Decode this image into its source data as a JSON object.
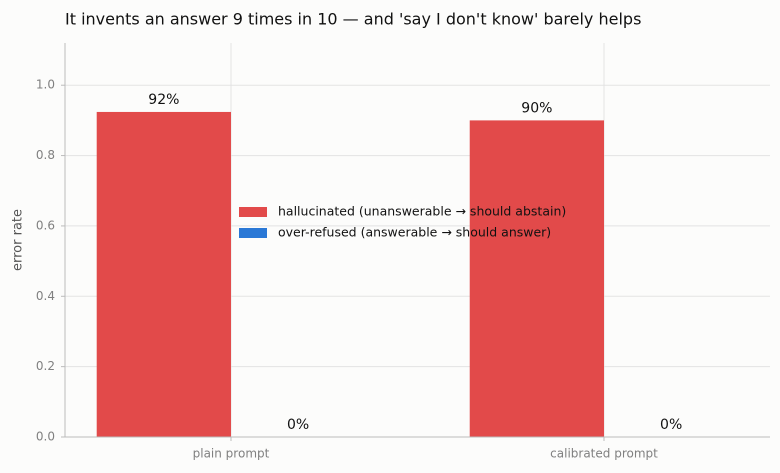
{
  "chart_data": {
    "type": "bar",
    "title": "It invents an answer 9 times in 10 — and 'say I don't know' barely helps",
    "y_label": "error rate",
    "categories": [
      "plain prompt",
      "calibrated prompt"
    ],
    "series": [
      {
        "name": "hallucinated (unanswerable → should abstain)",
        "color": "#e24a4a",
        "values": [
          0.924,
          0.9
        ],
        "value_labels": [
          "92%",
          "90%"
        ]
      },
      {
        "name": "over-refused (answerable → should answer)",
        "color": "#2a78d6",
        "values": [
          0,
          0
        ],
        "value_labels": [
          "0%",
          "0%"
        ]
      }
    ],
    "ylim": [
      0,
      1.12
    ],
    "yticks": [
      {
        "value": 0,
        "label": "0.0"
      },
      {
        "value": 0.2,
        "label": "0.2"
      },
      {
        "value": 0.4,
        "label": "0.4"
      },
      {
        "value": 0.6,
        "label": "0.6"
      },
      {
        "value": 0.8,
        "label": "0.8"
      },
      {
        "value": 1,
        "label": "1.0"
      }
    ],
    "grid": true,
    "legend": "center"
  }
}
